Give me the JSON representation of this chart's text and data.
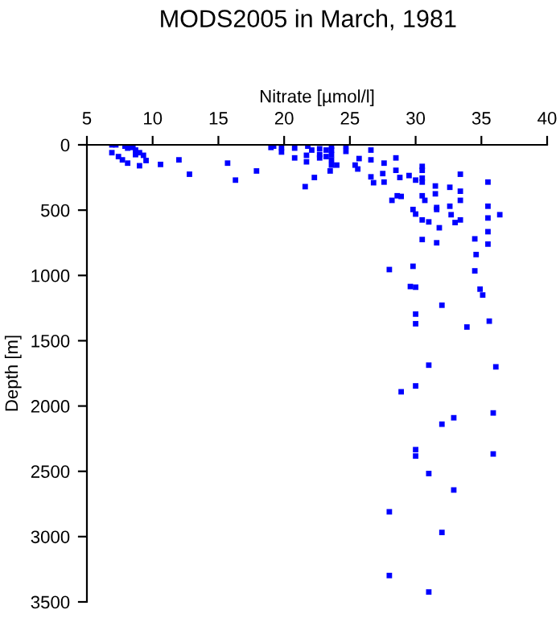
{
  "chart_data": {
    "type": "scatter",
    "title": "MODS2005 in March, 1981",
    "xlabel": "Nitrate [µmol/l]",
    "ylabel": "Depth [m]",
    "xlim": [
      5,
      40
    ],
    "xticks": [
      5,
      10,
      15,
      20,
      25,
      30,
      35,
      40
    ],
    "ylim": [
      3500,
      0
    ],
    "yticks": [
      0,
      500,
      1000,
      1500,
      2000,
      2500,
      3000,
      3500
    ],
    "grid": false,
    "marker": "square",
    "series": [
      {
        "color": "#0000ff",
        "x": [
          6.9,
          7.2,
          6.9,
          7.4,
          7.7,
          8.1,
          7.9,
          8.1,
          8.5,
          8.7,
          8.7,
          9.0,
          9.3,
          9.5,
          9.0,
          10.6,
          12.0,
          12.8,
          15.7,
          16.3,
          17.9,
          19.0,
          19.2,
          19.8,
          19.8,
          20.8,
          20.8,
          21.8,
          21.7,
          21.7,
          21.6,
          22.1,
          22.3,
          22.7,
          22.7,
          22.7,
          23.2,
          23.2,
          23.6,
          23.6,
          23.6,
          23.6,
          23.6,
          23.5,
          24.0,
          24.7,
          24.7,
          25.4,
          25.6,
          25.7,
          26.6,
          26.6,
          26.6,
          26.8,
          27.6,
          27.6,
          27.5,
          28.5,
          28.5,
          28.8,
          28.2,
          28.6,
          28.9,
          29.5,
          30.0,
          29.8,
          30.0,
          30.5,
          30.5,
          30.5,
          30.5,
          30.5,
          30.7,
          30.5,
          30.5,
          31.0,
          31.5,
          31.5,
          31.6,
          31.6,
          31.8,
          31.6,
          32.6,
          32.6,
          32.7,
          33.0,
          33.4,
          33.4,
          33.4,
          33.4,
          34.5,
          34.6,
          34.5,
          35.5,
          35.5,
          35.5,
          35.5,
          35.5,
          36.4,
          28.0,
          29.8,
          29.6,
          30.0,
          34.9,
          35.1,
          32.0,
          30.0,
          30.0,
          35.6,
          33.9,
          31.0,
          36.1,
          30.0,
          28.9,
          35.9,
          32.9,
          32.0,
          30.0,
          30.0,
          35.9,
          31.0,
          32.9,
          28.0,
          32.0,
          28.0,
          31.0
        ],
        "values": [
          0,
          0,
          60,
          90,
          115,
          140,
          10,
          25,
          20,
          40,
          75,
          60,
          80,
          120,
          160,
          150,
          115,
          225,
          140,
          270,
          200,
          20,
          10,
          20,
          55,
          25,
          100,
          10,
          80,
          130,
          320,
          40,
          250,
          30,
          75,
          100,
          40,
          90,
          10,
          40,
          75,
          115,
          155,
          200,
          155,
          10,
          50,
          155,
          185,
          105,
          40,
          115,
          245,
          290,
          140,
          285,
          220,
          100,
          195,
          250,
          425,
          390,
          395,
          235,
          270,
          495,
          530,
          165,
          195,
          255,
          285,
          390,
          425,
          575,
          725,
          590,
          315,
          375,
          480,
          495,
          635,
          750,
          325,
          470,
          535,
          595,
          225,
          355,
          425,
          575,
          720,
          840,
          965,
          285,
          470,
          560,
          665,
          760,
          535,
          955,
          930,
          1085,
          1090,
          1105,
          1150,
          1228,
          1296,
          1370,
          1350,
          1395,
          1687,
          1700,
          1846,
          1891,
          2053,
          2090,
          2139,
          2334,
          2383,
          2367,
          2517,
          2643,
          2810,
          2968,
          3298,
          3424
        ]
      }
    ]
  }
}
